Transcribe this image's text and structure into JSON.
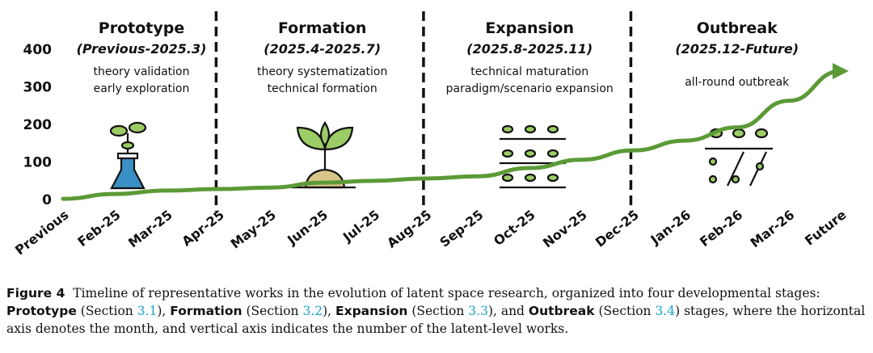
{
  "chart_data": {
    "type": "line",
    "categories": [
      "Previous",
      "Feb-25",
      "Mar-25",
      "Apr-25",
      "May-25",
      "Jun-25",
      "Jul-25",
      "Aug-25",
      "Sep-25",
      "Oct-25",
      "Nov-25",
      "Dec-25",
      "Jan-26",
      "Feb-26",
      "Mar-26",
      "Future"
    ],
    "values": [
      4,
      17,
      26,
      30,
      34,
      47,
      52,
      58,
      64,
      86,
      108,
      133,
      159,
      194,
      265,
      344
    ],
    "color": "#5b9a36",
    "ylim": [
      0,
      400
    ],
    "yticks": [
      0,
      100,
      200,
      300,
      400
    ],
    "stages": [
      {
        "title": "Prototype",
        "period": "(Previous-2025.3)",
        "lines": [
          "theory validation",
          "early exploration"
        ]
      },
      {
        "title": "Formation",
        "period": "(2025.4-2025.7)",
        "lines": [
          "theory systematization",
          "technical formation"
        ]
      },
      {
        "title": "Expansion",
        "period": "(2025.8-2025.11)",
        "lines": [
          "technical maturation",
          "paradigm/scenario expansion"
        ]
      },
      {
        "title": "Outbreak",
        "period": "(2025.12-Future)",
        "lines": [
          "all-round outbreak"
        ]
      }
    ]
  },
  "caption": {
    "label": "Figure 4",
    "parts": [
      "Timeline of representative works in the evolution of latent space research, organized into four developmental stages: ",
      "Prototype",
      " (Section ",
      "3.1",
      "), ",
      "Formation",
      " (Section ",
      "3.2",
      "), ",
      "Expansion",
      " (Section ",
      "3.3",
      "), and ",
      "Outbreak",
      " (Section ",
      "3.4",
      ") stages, where the horizontal axis denotes the month, and vertical axis indicates the number of the latent-level works."
    ]
  }
}
